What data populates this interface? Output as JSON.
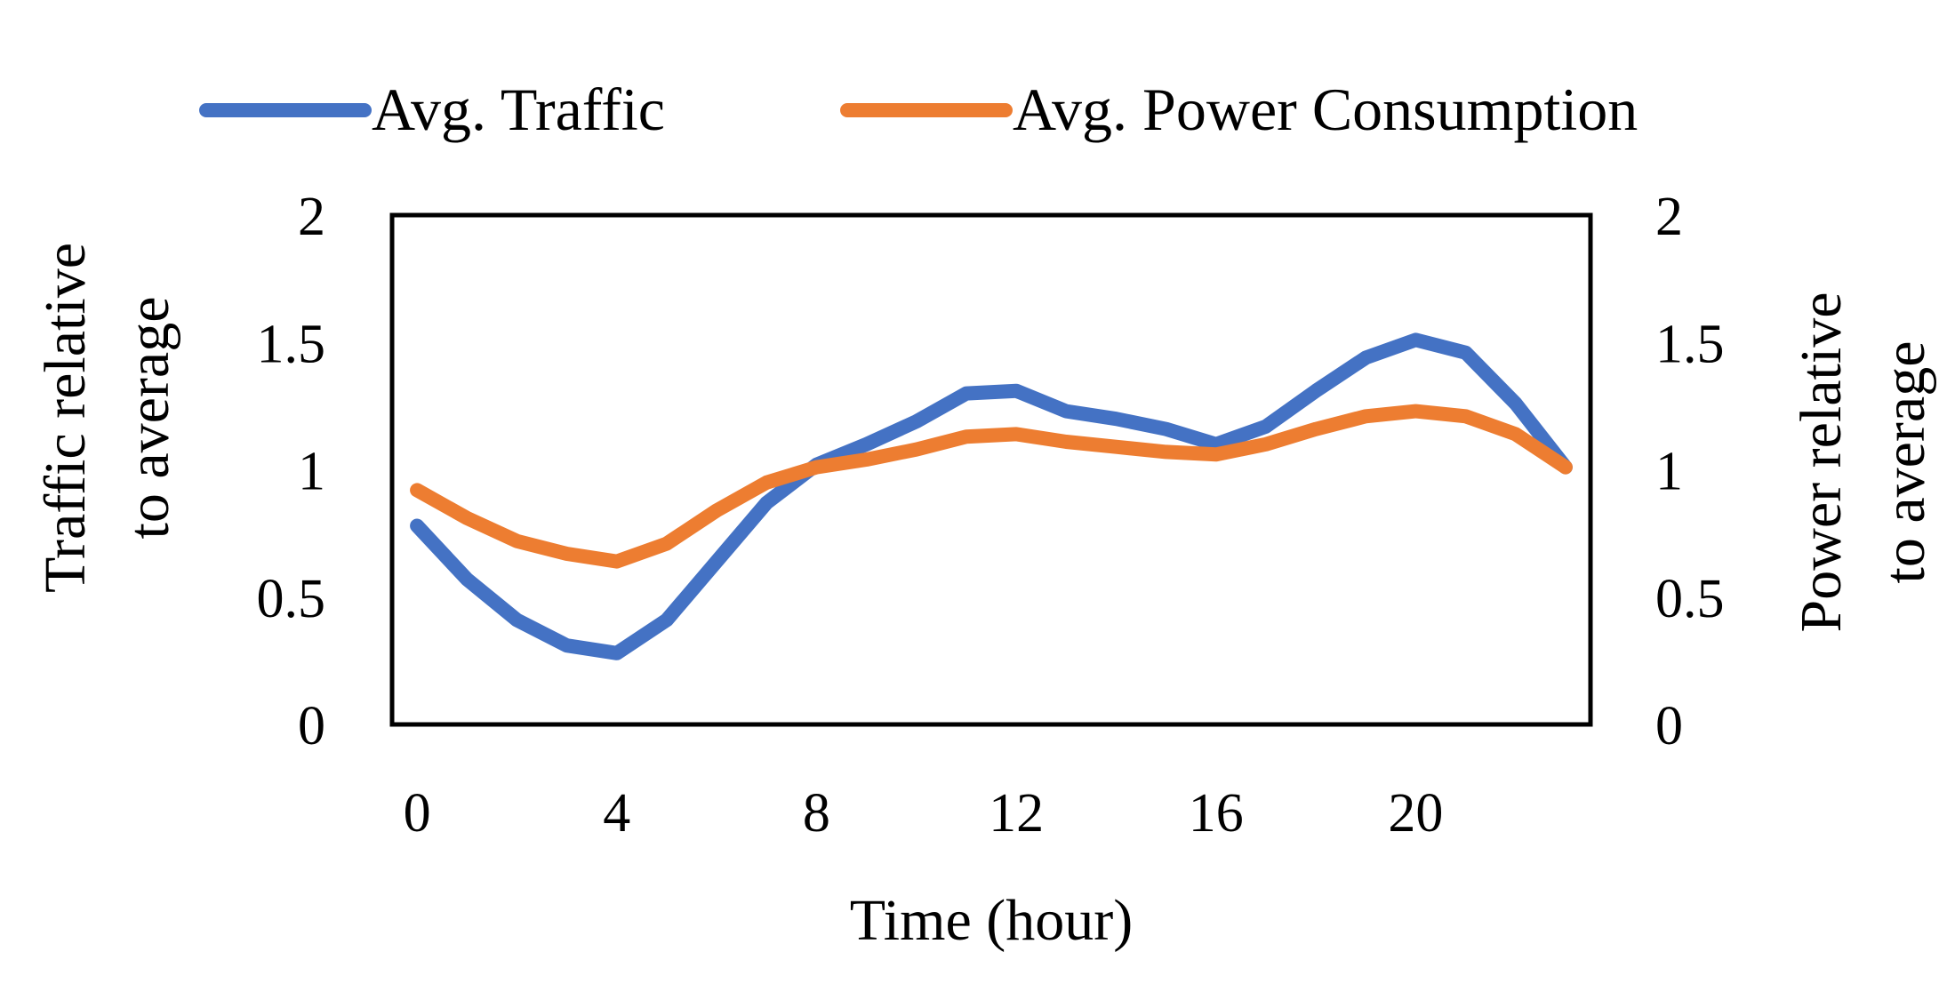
{
  "chart_data": {
    "type": "line",
    "x": [
      0,
      1,
      2,
      3,
      4,
      5,
      6,
      7,
      8,
      9,
      10,
      11,
      12,
      13,
      14,
      15,
      16,
      17,
      18,
      19,
      20,
      21,
      22,
      23
    ],
    "series": [
      {
        "name": "Avg. Traffic",
        "axis": "left",
        "color": "#4472C4",
        "values": [
          0.78,
          0.57,
          0.41,
          0.31,
          0.28,
          0.41,
          0.64,
          0.87,
          1.02,
          1.1,
          1.19,
          1.3,
          1.31,
          1.23,
          1.2,
          1.16,
          1.1,
          1.17,
          1.31,
          1.44,
          1.51,
          1.46,
          1.26,
          1.01
        ]
      },
      {
        "name": "Avg. Power Consumption",
        "axis": "left",
        "color": "#ED7D31",
        "values": [
          0.92,
          0.81,
          0.72,
          0.67,
          0.64,
          0.71,
          0.84,
          0.95,
          1.01,
          1.04,
          1.08,
          1.13,
          1.14,
          1.11,
          1.09,
          1.07,
          1.06,
          1.1,
          1.16,
          1.21,
          1.23,
          1.21,
          1.14,
          1.01
        ]
      }
    ],
    "xlabel": "Time (hour)",
    "ylabel_left": [
      "Traffic relative",
      "to average"
    ],
    "ylabel_right": [
      "Power relative",
      "to average"
    ],
    "xlim": [
      -0.5,
      23.5
    ],
    "ylim": [
      0,
      2
    ],
    "x_ticks": [
      0,
      4,
      8,
      12,
      16,
      20
    ],
    "x_tick_labels": [
      "0",
      "4",
      "8",
      "12",
      "16",
      "20"
    ],
    "y_ticks": [
      0,
      0.5,
      1,
      1.5,
      2
    ],
    "y_tick_labels": [
      "0",
      "0.5",
      "1",
      "1.5",
      "2"
    ],
    "y_right_tick_labels": [
      "0",
      "0.5",
      "1",
      "1.5",
      "2"
    ],
    "grid": false,
    "legend": "top"
  }
}
